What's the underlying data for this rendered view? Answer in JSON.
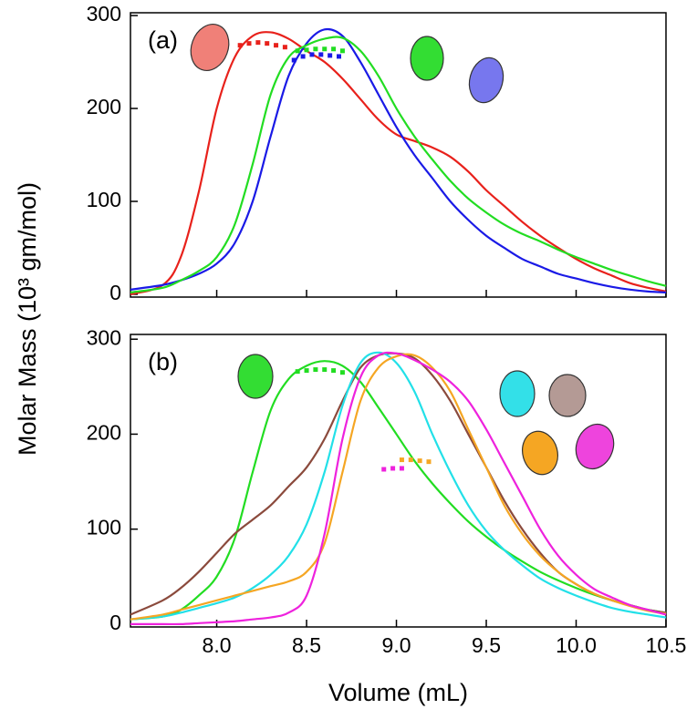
{
  "chart_data": [
    {
      "type": "line",
      "panel_label": "(a)",
      "x": [
        7.52,
        7.7,
        7.8,
        7.9,
        8.0,
        8.1,
        8.2,
        8.3,
        8.4,
        8.5,
        8.6,
        8.7,
        8.8,
        8.9,
        9.0,
        9.1,
        9.2,
        9.3,
        9.4,
        9.5,
        9.6,
        9.7,
        9.8,
        9.9,
        10.0,
        10.1,
        10.2,
        10.3,
        10.4,
        10.5
      ],
      "xlim": [
        7.52,
        10.5
      ],
      "ylim": [
        -3,
        303
      ],
      "yticks": [
        0,
        100,
        200,
        300
      ],
      "series": [
        {
          "color": "#e8211b",
          "values": [
            0,
            10,
            40,
            110,
            200,
            255,
            278,
            282,
            275,
            262,
            250,
            232,
            210,
            188,
            172,
            165,
            158,
            148,
            132,
            112,
            95,
            78,
            63,
            50,
            38,
            28,
            20,
            12,
            7,
            3
          ]
        },
        {
          "color": "#1a1ae6",
          "values": [
            5,
            10,
            15,
            22,
            33,
            55,
            100,
            170,
            235,
            270,
            285,
            278,
            250,
            215,
            180,
            150,
            125,
            100,
            80,
            63,
            50,
            38,
            30,
            22,
            17,
            12,
            8,
            5,
            3,
            2
          ]
        },
        {
          "color": "#22dd22",
          "values": [
            2,
            7,
            15,
            25,
            40,
            75,
            140,
            215,
            255,
            268,
            275,
            276,
            262,
            235,
            200,
            170,
            145,
            122,
            103,
            88,
            75,
            65,
            57,
            48,
            40,
            33,
            26,
            20,
            14,
            9
          ]
        },
        {
          "color": "#e8211b",
          "style": "dotted",
          "x": [
            8.13,
            8.18,
            8.23,
            8.28,
            8.33,
            8.38
          ],
          "values": [
            268,
            270,
            271,
            270,
            268,
            266
          ]
        },
        {
          "color": "#1a1ae6",
          "style": "dotted",
          "x": [
            8.43,
            8.48,
            8.53,
            8.58,
            8.63,
            8.68
          ],
          "values": [
            252,
            256,
            258,
            258,
            257,
            256
          ]
        },
        {
          "color": "#22dd22",
          "style": "dotted",
          "x": [
            8.45,
            8.5,
            8.55,
            8.6,
            8.65,
            8.7
          ],
          "values": [
            262,
            263,
            264,
            264,
            264,
            262
          ]
        }
      ]
    },
    {
      "type": "line",
      "panel_label": "(b)",
      "xlabel": "Volume (mL)",
      "ylabel": "Molar Mass (10³ gm/mol)",
      "x": [
        7.52,
        7.7,
        7.8,
        7.9,
        8.0,
        8.1,
        8.2,
        8.3,
        8.4,
        8.5,
        8.6,
        8.7,
        8.8,
        8.9,
        9.0,
        9.1,
        9.2,
        9.3,
        9.4,
        9.5,
        9.6,
        9.7,
        9.8,
        9.9,
        10.0,
        10.1,
        10.2,
        10.3,
        10.4,
        10.5
      ],
      "xlim": [
        7.52,
        10.5
      ],
      "ylim": [
        -3,
        305
      ],
      "yticks": [
        0,
        100,
        200,
        300
      ],
      "xticks": [
        {
          "value": 8,
          "label": "8.0"
        },
        8.5,
        {
          "value": 9,
          "label": "9.0"
        },
        9.5,
        {
          "value": 10,
          "label": "10.0"
        },
        10.5
      ],
      "series": [
        {
          "color": "#22dd22",
          "values": [
            5,
            8,
            15,
            30,
            50,
            90,
            160,
            225,
            258,
            272,
            277,
            272,
            255,
            228,
            200,
            172,
            148,
            127,
            108,
            92,
            78,
            66,
            55,
            46,
            38,
            31,
            25,
            20,
            15,
            12
          ]
        },
        {
          "color": "#8b4a3c",
          "values": [
            10,
            25,
            38,
            55,
            75,
            95,
            110,
            125,
            145,
            165,
            195,
            235,
            270,
            283,
            285,
            280,
            262,
            235,
            200,
            165,
            130,
            100,
            75,
            55,
            42,
            32,
            25,
            20,
            15,
            12
          ]
        },
        {
          "color": "#22e0e8",
          "values": [
            5,
            8,
            12,
            17,
            22,
            28,
            38,
            52,
            72,
            105,
            160,
            230,
            275,
            286,
            275,
            245,
            200,
            160,
            125,
            98,
            78,
            62,
            48,
            38,
            30,
            23,
            17,
            13,
            10,
            7
          ]
        },
        {
          "color": "#f5a623",
          "values": [
            5,
            10,
            15,
            20,
            25,
            30,
            35,
            40,
            45,
            55,
            85,
            160,
            235,
            270,
            282,
            283,
            270,
            245,
            205,
            165,
            125,
            95,
            72,
            55,
            42,
            32,
            25,
            19,
            14,
            11
          ]
        },
        {
          "color": "#ee22dd",
          "values": [
            0,
            0,
            0,
            1,
            2,
            3,
            5,
            7,
            12,
            30,
            95,
            195,
            260,
            283,
            285,
            278,
            268,
            255,
            235,
            205,
            170,
            135,
            100,
            72,
            52,
            37,
            28,
            20,
            15,
            10
          ]
        },
        {
          "color": "#22dd22",
          "style": "dotted",
          "x": [
            8.45,
            8.5,
            8.55,
            8.6,
            8.65,
            8.7
          ],
          "values": [
            266,
            267,
            268,
            268,
            267,
            265
          ]
        },
        {
          "color": "#f5a623",
          "style": "dotted",
          "x": [
            9.03,
            9.08,
            9.13,
            9.18
          ],
          "values": [
            173,
            173,
            172,
            171
          ]
        },
        {
          "color": "#ee22dd",
          "style": "dotted",
          "x": [
            8.93,
            8.98,
            9.03
          ],
          "values": [
            163,
            164,
            164
          ]
        }
      ]
    }
  ]
}
